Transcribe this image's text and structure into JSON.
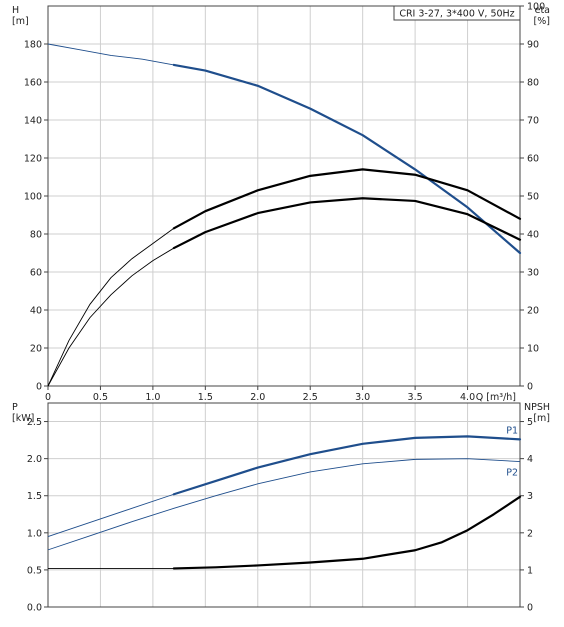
{
  "chart_data": [
    {
      "type": "line",
      "title": "",
      "legend": "CRI 3-27, 3*400 V, 50Hz",
      "xlabel": "Q [m³/h]",
      "ylabel_left": "H",
      "ylabel_left_unit": "[m]",
      "ylabel_right": "eta",
      "ylabel_right_unit": "[%]",
      "xlim": [
        0,
        4.5
      ],
      "ylim_left": [
        0,
        200
      ],
      "ylim_right": [
        0,
        100
      ],
      "x_ticks": [
        "0",
        "0.5",
        "1.0",
        "1.5",
        "2.0",
        "2.5",
        "3.0",
        "3.5",
        "4.0"
      ],
      "y_left_ticks": [
        "0",
        "20",
        "40",
        "60",
        "80",
        "100",
        "120",
        "140",
        "160",
        "180"
      ],
      "y_right_ticks": [
        "0",
        "10",
        "20",
        "30",
        "40",
        "50",
        "60",
        "70",
        "80",
        "90",
        "100"
      ],
      "grid": true,
      "series": [
        {
          "axis": "left",
          "color": "#1f4e8c",
          "thin_x": [
            0,
            0.3,
            0.6,
            0.9,
            1.2
          ],
          "thin_y": [
            180,
            177,
            174,
            172,
            169
          ],
          "x": [
            1.2,
            1.5,
            2.0,
            2.5,
            3.0,
            3.5,
            4.0,
            4.5
          ],
          "y": [
            169,
            166,
            158,
            146,
            132,
            114,
            94,
            70
          ]
        },
        {
          "axis": "right",
          "color": "#000000",
          "thin_x": [
            0,
            0.2,
            0.4,
            0.6,
            0.8,
            1.0,
            1.2
          ],
          "thin_y": [
            0,
            12,
            21.5,
            28.5,
            33.5,
            37.5,
            41.5
          ],
          "x": [
            1.2,
            1.5,
            2.0,
            2.5,
            3.0,
            3.5,
            4.0,
            4.5
          ],
          "y": [
            41.5,
            46,
            51.5,
            55.3,
            57,
            55.6,
            51.5,
            44
          ]
        },
        {
          "axis": "right",
          "color": "#000000",
          "thin_x": [
            0,
            0.2,
            0.4,
            0.6,
            0.8,
            1.0,
            1.2
          ],
          "thin_y": [
            0,
            10,
            18,
            24,
            29,
            33,
            36.3
          ],
          "x": [
            1.2,
            1.5,
            2.0,
            2.5,
            3.0,
            3.5,
            4.0,
            4.5
          ],
          "y": [
            36.3,
            40.5,
            45.5,
            48.3,
            49.4,
            48.7,
            45.2,
            38.5
          ]
        }
      ]
    },
    {
      "type": "line",
      "title": "",
      "xlabel": "",
      "ylabel_left": "P",
      "ylabel_left_unit": "[kW]",
      "ylabel_right": "NPSH",
      "ylabel_right_unit": "[m]",
      "xlim": [
        0,
        4.5
      ],
      "ylim_left": [
        0,
        2.75
      ],
      "ylim_right": [
        0,
        5.5
      ],
      "y_left_ticks": [
        "0.0",
        "0.5",
        "1.0",
        "1.5",
        "2.0",
        "2.5"
      ],
      "y_right_ticks": [
        "0",
        "1",
        "2",
        "3",
        "4",
        "5"
      ],
      "grid": true,
      "series": [
        {
          "name": "P1",
          "axis": "left",
          "color": "#1f4e8c",
          "thin_x": [
            0,
            0.4,
            0.8,
            1.2
          ],
          "thin_y": [
            0.95,
            1.14,
            1.33,
            1.52
          ],
          "x": [
            1.2,
            1.6,
            2.0,
            2.5,
            3.0,
            3.5,
            4.0,
            4.5
          ],
          "y": [
            1.52,
            1.7,
            1.88,
            2.06,
            2.2,
            2.28,
            2.3,
            2.26
          ]
        },
        {
          "name": "P2",
          "axis": "left",
          "color": "#1f4e8c",
          "thin_x": [
            0,
            0.4,
            0.8,
            1.2,
            1.6,
            2.0,
            2.5,
            3.0,
            3.5,
            4.0,
            4.5
          ],
          "thin_y": [
            0.77,
            0.96,
            1.15,
            1.33,
            1.5,
            1.66,
            1.82,
            1.93,
            1.99,
            2.0,
            1.96
          ],
          "x": [],
          "y": []
        },
        {
          "axis": "right",
          "color": "#000000",
          "thin_x": [
            0,
            0.6,
            1.2
          ],
          "thin_y": [
            1.04,
            1.04,
            1.04
          ],
          "x": [
            1.2,
            1.6,
            2.0,
            2.5,
            3.0,
            3.5,
            3.75,
            4.0,
            4.25,
            4.5
          ],
          "y": [
            1.04,
            1.07,
            1.12,
            1.2,
            1.3,
            1.53,
            1.74,
            2.07,
            2.5,
            2.97
          ]
        }
      ]
    }
  ]
}
